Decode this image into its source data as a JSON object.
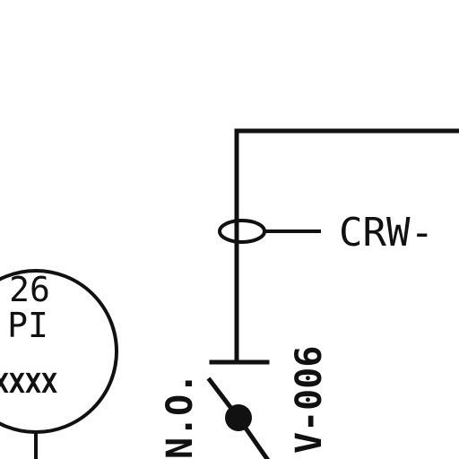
{
  "instrument_bubble": {
    "tag_number": "26",
    "tag_letters": "PI",
    "tag_suffix": "XXXX"
  },
  "pipe_label": "CRW-",
  "valve": {
    "tag": "V-006",
    "state": "N.O."
  }
}
